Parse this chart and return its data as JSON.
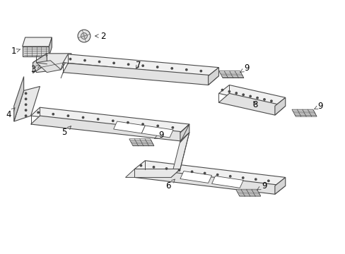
{
  "bg_color": "#ffffff",
  "line_color": "#4a4a4a",
  "label_color": "#000000",
  "fig_width": 4.89,
  "fig_height": 3.6,
  "dpi": 100
}
